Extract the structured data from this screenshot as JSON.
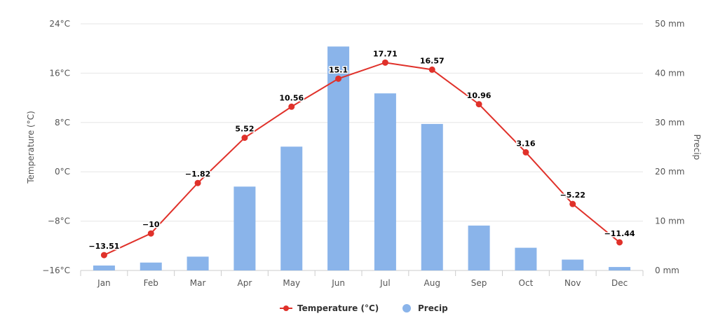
{
  "chart_data": {
    "type": "bar",
    "title": "",
    "categories": [
      "Jan",
      "Feb",
      "Mar",
      "Apr",
      "May",
      "Jun",
      "Jul",
      "Aug",
      "Sep",
      "Oct",
      "Nov",
      "Dec"
    ],
    "series": [
      {
        "name": "Temperature (°C)",
        "type": "line",
        "axis": "left",
        "color": "#e0312a",
        "values": [
          -13.51,
          -10,
          -1.82,
          5.52,
          10.56,
          15.1,
          17.71,
          16.57,
          10.96,
          3.16,
          -5.22,
          -11.44
        ],
        "labels": [
          "−13.51",
          "−10",
          "−1.82",
          "5.52",
          "10.56",
          "15.1",
          "17.71",
          "16.57",
          "10.96",
          "3.16",
          "−5.22",
          "−11.44"
        ]
      },
      {
        "name": "Precip",
        "type": "bar",
        "axis": "right",
        "color": "#8ab4ea",
        "values": [
          1.0,
          1.6,
          2.8,
          17.0,
          25.1,
          45.4,
          35.9,
          29.7,
          9.1,
          4.6,
          2.2,
          0.7
        ]
      }
    ],
    "y_left": {
      "label": "Temperature (°C)",
      "ylim": [
        -16,
        24
      ],
      "ticks": [
        -16,
        -8,
        0,
        8,
        16,
        24
      ],
      "tick_labels": [
        "−16°C",
        "−8°C",
        "0°C",
        "8°C",
        "16°C",
        "24°C"
      ]
    },
    "y_right": {
      "label": "Precip",
      "ylim": [
        0,
        50
      ],
      "ticks": [
        0,
        10,
        20,
        30,
        40,
        50
      ],
      "tick_labels": [
        "0 mm",
        "10 mm",
        "20 mm",
        "30 mm",
        "40 mm",
        "50 mm"
      ]
    },
    "grid": true,
    "legend_position": "bottom-center"
  }
}
